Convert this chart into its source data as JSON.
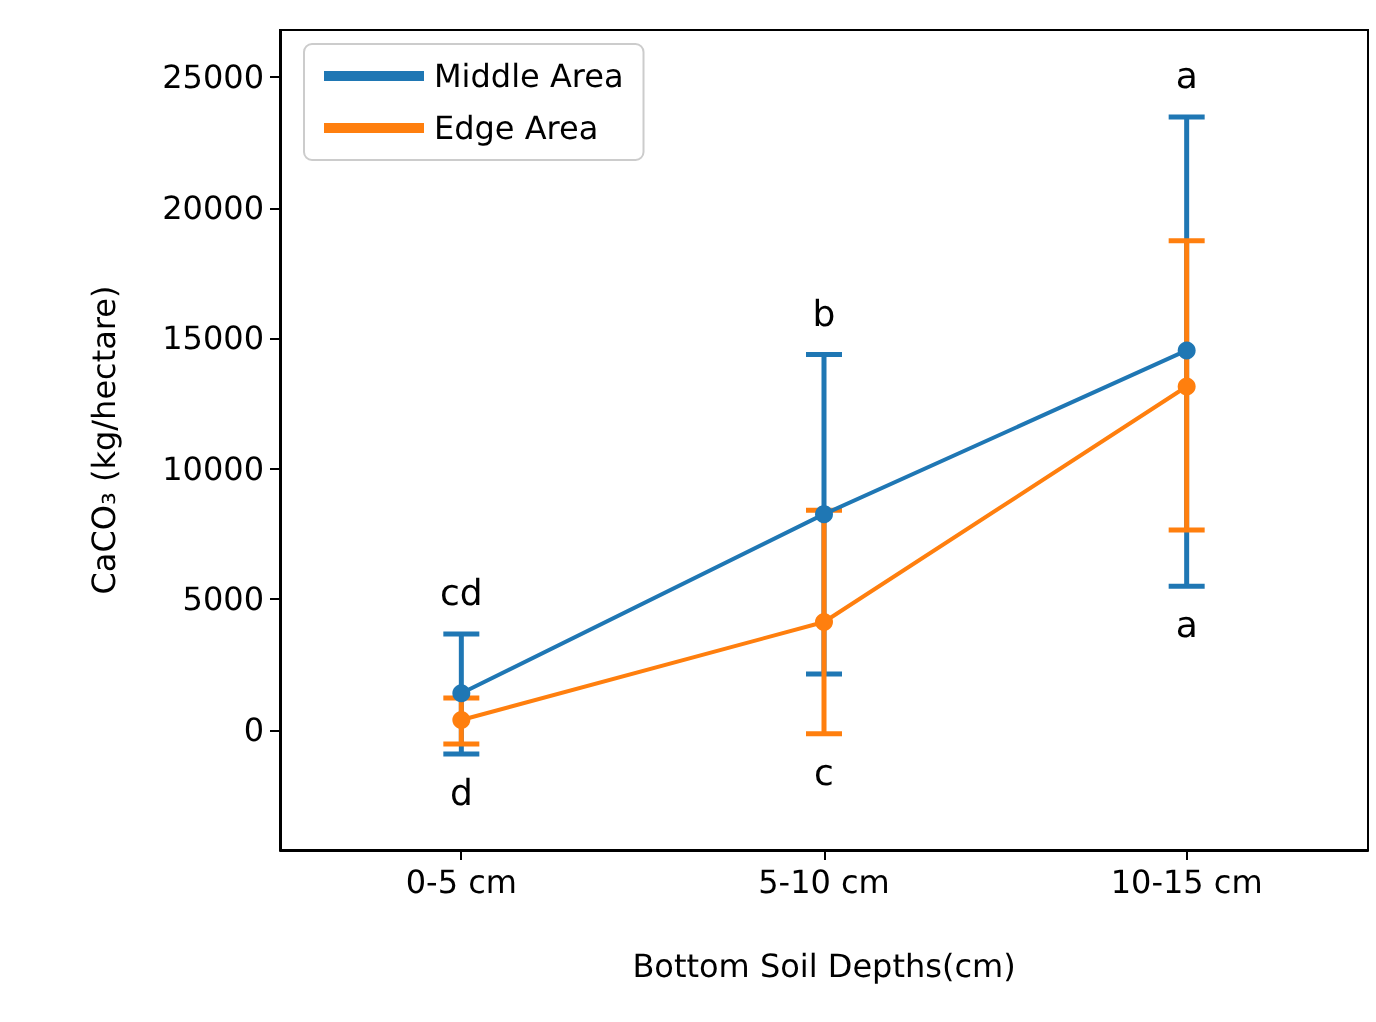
{
  "chart_data": {
    "type": "line",
    "xlabel": "Bottom Soil Depths(cm)",
    "ylabel": "CaCO₃ (kg/hectare)",
    "categories": [
      "0-5 cm",
      "5-10 cm",
      "10-15 cm"
    ],
    "series": [
      {
        "name": "Middle Area",
        "color": "#1f77b4",
        "values": [
          1400,
          8260,
          14530
        ],
        "errors": [
          [
            -920,
            3670
          ],
          [
            2140,
            14370
          ],
          [
            5500,
            23470
          ]
        ]
      },
      {
        "name": "Edge Area",
        "color": "#ff7f0e",
        "values": [
          380,
          4130,
          13150
        ],
        "errors": [
          [
            -540,
            1220
          ],
          [
            -150,
            8410
          ],
          [
            7650,
            18730
          ]
        ]
      }
    ],
    "ylim": [
      -4600,
      26800
    ],
    "yticks": [
      0,
      5000,
      10000,
      15000,
      20000,
      25000
    ],
    "annotations": [
      "cd",
      "d",
      "b",
      "c",
      "a",
      "a"
    ],
    "marker": "circle",
    "line_style": "solid",
    "grid": false,
    "legend": "top left"
  }
}
